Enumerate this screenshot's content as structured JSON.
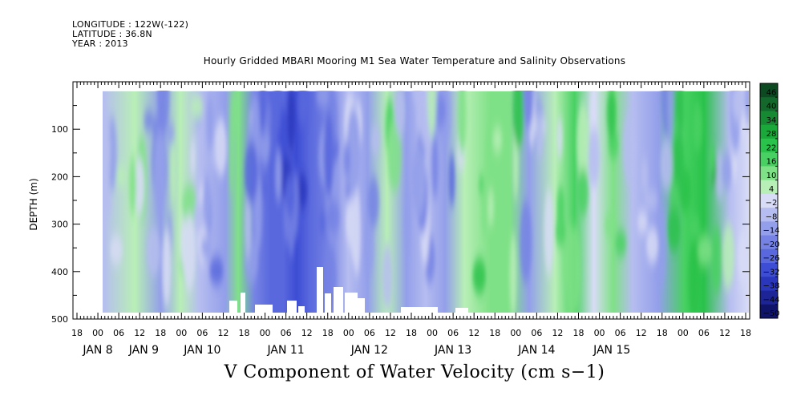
{
  "header": {
    "longitude": "LONGITUDE : 122W(-122)",
    "latitude": "LATITUDE : 36.8N",
    "year": "YEAR : 2013"
  },
  "chart_data": {
    "type": "heatmap",
    "title": "Hourly Gridded MBARI Mooring M1 Sea Water Temperature and Salinity Observations",
    "subtitle": "V Component of Water Velocity (cm s−1)",
    "ylabel": "DEPTH (m)",
    "ylim": [
      500,
      0
    ],
    "y_ticks": [
      100,
      200,
      300,
      400,
      500
    ],
    "y_tick_labels": [
      "100",
      "200",
      "300",
      "400",
      "500"
    ],
    "x_hour_labels": [
      "18",
      "00",
      "06",
      "12",
      "18",
      "00",
      "06",
      "12",
      "18",
      "00",
      "06",
      "12",
      "18",
      "00",
      "06",
      "12",
      "18",
      "00",
      "06",
      "12",
      "18",
      "00",
      "06",
      "12",
      "18",
      "00",
      "06",
      "12",
      "18",
      "00",
      "06",
      "12",
      "18"
    ],
    "x_day_labels": [
      {
        "label": "JAN 8",
        "hour_index": 1
      },
      {
        "label": "JAN 9",
        "hour_index": 3.2
      },
      {
        "label": "JAN 10",
        "hour_index": 6
      },
      {
        "label": "JAN 11",
        "hour_index": 10
      },
      {
        "label": "JAN 12",
        "hour_index": 14
      },
      {
        "label": "JAN 13",
        "hour_index": 18
      },
      {
        "label": "JAN 14",
        "hour_index": 22
      },
      {
        "label": "JAN 15",
        "hour_index": 25.6
      }
    ],
    "data_depth_range": [
      20,
      490
    ],
    "colorbar": {
      "levels": [
        46,
        40,
        34,
        28,
        22,
        16,
        10,
        4,
        -2,
        -8,
        -14,
        -20,
        -26,
        -32,
        -38,
        -44,
        -50
      ],
      "level_labels": [
        "46",
        "40",
        "34",
        "28",
        "22",
        "16",
        "10",
        "4",
        "−2",
        "−8",
        "−14",
        "−20",
        "−26",
        "−32",
        "−38",
        "−44",
        "−50"
      ],
      "colors_top_to_bottom": [
        "#0c4a22",
        "#13692b",
        "#158a33",
        "#1ba83a",
        "#29c24a",
        "#48d162",
        "#7fe187",
        "#b8efb6",
        "#d8dcf6",
        "#b6bdf0",
        "#939fea",
        "#7683e4",
        "#5968dd",
        "#3d4dd4",
        "#2a37bd",
        "#1c2496",
        "#0f146a"
      ]
    },
    "mid_value_colors": {
      "near_zero": "#cfd5f5",
      "negative": "#8a98e8",
      "strong_negative": "#2f44d0",
      "positive": "#7fe187",
      "strong_positive": "#20b83c",
      "missing": "#ffffff"
    },
    "velocity_bands": [
      {
        "x": 0.0,
        "v": -8
      },
      {
        "x": 0.05,
        "v": 2
      },
      {
        "x": 0.09,
        "v": -14
      },
      {
        "x": 0.12,
        "v": 4
      },
      {
        "x": 0.15,
        "v": -10
      },
      {
        "x": 0.19,
        "v": -16
      },
      {
        "x": 0.21,
        "v": 6
      },
      {
        "x": 0.235,
        "v": -20
      },
      {
        "x": 0.26,
        "v": -26
      },
      {
        "x": 0.28,
        "v": -30
      },
      {
        "x": 0.3,
        "v": -34
      },
      {
        "x": 0.32,
        "v": -28
      },
      {
        "x": 0.35,
        "v": -20
      },
      {
        "x": 0.38,
        "v": -12
      },
      {
        "x": 0.41,
        "v": -14
      },
      {
        "x": 0.44,
        "v": 2
      },
      {
        "x": 0.47,
        "v": -18
      },
      {
        "x": 0.5,
        "v": -12
      },
      {
        "x": 0.53,
        "v": -16
      },
      {
        "x": 0.56,
        "v": 4
      },
      {
        "x": 0.6,
        "v": 10
      },
      {
        "x": 0.63,
        "v": 6
      },
      {
        "x": 0.66,
        "v": -14
      },
      {
        "x": 0.7,
        "v": 4
      },
      {
        "x": 0.73,
        "v": 12
      },
      {
        "x": 0.76,
        "v": -6
      },
      {
        "x": 0.79,
        "v": 8
      },
      {
        "x": 0.82,
        "v": -10
      },
      {
        "x": 0.86,
        "v": -16
      },
      {
        "x": 0.9,
        "v": 16
      },
      {
        "x": 0.93,
        "v": 20
      },
      {
        "x": 0.97,
        "v": -8
      },
      {
        "x": 1.0,
        "v": -6
      }
    ]
  }
}
